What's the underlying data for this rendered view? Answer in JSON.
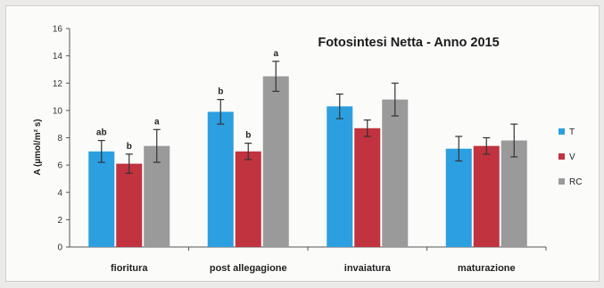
{
  "chart_data": {
    "type": "bar",
    "title": "Fotosintesi Netta - Anno 2015",
    "ylabel": "A (µmol/m² s)",
    "xlabel": "",
    "ylim": [
      0,
      16
    ],
    "yticks": [
      0,
      2,
      4,
      6,
      8,
      10,
      12,
      14,
      16
    ],
    "categories": [
      "fioritura",
      "post allegagione",
      "invaiatura",
      "maturazione"
    ],
    "legend_position": "right",
    "grid": false,
    "series": [
      {
        "name": "T",
        "color": "#2b9fe0",
        "values": [
          7.0,
          9.9,
          10.3,
          7.2
        ],
        "errors": [
          0.8,
          0.9,
          0.9,
          0.9
        ],
        "letters": [
          "ab",
          "b",
          "",
          ""
        ]
      },
      {
        "name": "V",
        "color": "#c0333f",
        "values": [
          6.1,
          7.0,
          8.7,
          7.4
        ],
        "errors": [
          0.7,
          0.6,
          0.6,
          0.6
        ],
        "letters": [
          "b",
          "b",
          "",
          ""
        ]
      },
      {
        "name": "RC",
        "color": "#9a9a9a",
        "values": [
          7.4,
          12.5,
          10.8,
          7.8
        ],
        "errors": [
          1.2,
          1.1,
          1.2,
          1.2
        ],
        "letters": [
          "a",
          "a",
          "",
          ""
        ]
      }
    ]
  }
}
